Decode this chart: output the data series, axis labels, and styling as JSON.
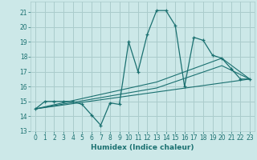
{
  "xlabel": "Humidex (Indice chaleur)",
  "background_color": "#cce8e8",
  "grid_color": "#aacccc",
  "line_color": "#1a7070",
  "xlim": [
    -0.5,
    23.5
  ],
  "ylim": [
    13,
    21.7
  ],
  "yticks": [
    13,
    14,
    15,
    16,
    17,
    18,
    19,
    20,
    21
  ],
  "xticks": [
    0,
    1,
    2,
    3,
    4,
    5,
    6,
    7,
    8,
    9,
    10,
    11,
    12,
    13,
    14,
    15,
    16,
    17,
    18,
    19,
    20,
    21,
    22,
    23
  ],
  "main_line": {
    "x": [
      0,
      1,
      2,
      3,
      4,
      5,
      6,
      7,
      8,
      9,
      10,
      11,
      12,
      13,
      14,
      15,
      16,
      17,
      18,
      19,
      20,
      21,
      22,
      23
    ],
    "y": [
      14.5,
      15.0,
      15.0,
      15.0,
      15.0,
      14.8,
      14.1,
      13.4,
      14.9,
      14.8,
      19.0,
      17.0,
      19.5,
      21.1,
      21.1,
      20.1,
      16.0,
      19.3,
      19.1,
      18.1,
      17.9,
      17.2,
      16.5,
      16.5
    ]
  },
  "line2": {
    "x": [
      0,
      13,
      20,
      23
    ],
    "y": [
      14.5,
      16.3,
      17.9,
      16.5
    ]
  },
  "line3": {
    "x": [
      0,
      13,
      20,
      23
    ],
    "y": [
      14.5,
      15.9,
      17.4,
      16.5
    ]
  },
  "line4": {
    "x": [
      0,
      23
    ],
    "y": [
      14.5,
      16.5
    ]
  }
}
